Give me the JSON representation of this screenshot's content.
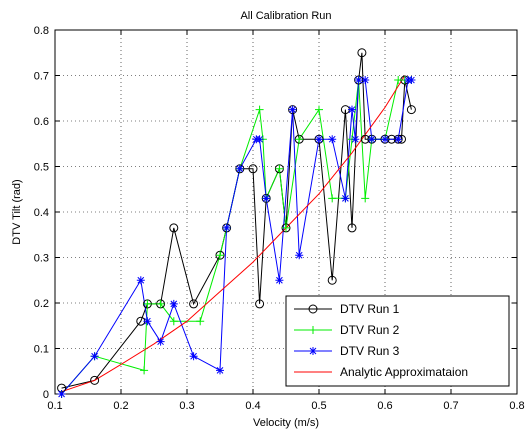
{
  "chart_data": {
    "type": "line",
    "title": "All Calibration Run",
    "xlabel": "Velocity (m/s)",
    "ylabel": "DTV Tilt (rad)",
    "xlim": [
      0.1,
      0.8
    ],
    "ylim": [
      0,
      0.8
    ],
    "xticks": [
      "0.1",
      "0.2",
      "0.3",
      "0.4",
      "0.5",
      "0.6",
      "0.7",
      "0.8"
    ],
    "yticks": [
      "0",
      "0.1",
      "0.2",
      "0.3",
      "0.4",
      "0.5",
      "0.6",
      "0.7",
      "0.8"
    ],
    "grid": "dotted",
    "legend_position": "bottom-right",
    "series": [
      {
        "name": "DTV Run 1",
        "color": "#000000",
        "marker": "circle",
        "x": [
          0.11,
          0.16,
          0.23,
          0.24,
          0.26,
          0.28,
          0.31,
          0.35,
          0.36,
          0.38,
          0.4,
          0.41,
          0.42,
          0.44,
          0.45,
          0.46,
          0.47,
          0.5,
          0.52,
          0.54,
          0.55,
          0.56,
          0.565,
          0.57,
          0.58,
          0.6,
          0.61,
          0.62,
          0.625,
          0.63,
          0.64
        ],
        "y": [
          0.013,
          0.03,
          0.16,
          0.198,
          0.198,
          0.365,
          0.198,
          0.305,
          0.365,
          0.495,
          0.495,
          0.198,
          0.43,
          0.495,
          0.365,
          0.625,
          0.56,
          0.56,
          0.25,
          0.625,
          0.365,
          0.69,
          0.75,
          0.56,
          0.56,
          0.56,
          0.56,
          0.56,
          0.56,
          0.69,
          0.625
        ]
      },
      {
        "name": "DTV Run 2",
        "color": "#00ee00",
        "marker": "plus",
        "x": [
          0.11,
          0.16,
          0.235,
          0.24,
          0.26,
          0.28,
          0.32,
          0.35,
          0.36,
          0.38,
          0.41,
          0.415,
          0.42,
          0.44,
          0.45,
          0.47,
          0.5,
          0.52,
          0.54,
          0.55,
          0.56,
          0.57,
          0.58,
          0.6,
          0.62,
          0.63,
          0.64
        ],
        "y": [
          0.0,
          0.083,
          0.052,
          0.198,
          0.198,
          0.16,
          0.16,
          0.305,
          0.365,
          0.495,
          0.625,
          0.56,
          0.43,
          0.495,
          0.365,
          0.56,
          0.625,
          0.43,
          0.43,
          0.56,
          0.69,
          0.43,
          0.56,
          0.56,
          0.69,
          0.69,
          0.69
        ]
      },
      {
        "name": "DTV Run 3",
        "color": "#0000ff",
        "marker": "star",
        "x": [
          0.11,
          0.16,
          0.23,
          0.24,
          0.26,
          0.28,
          0.31,
          0.35,
          0.36,
          0.38,
          0.405,
          0.41,
          0.42,
          0.44,
          0.46,
          0.47,
          0.5,
          0.52,
          0.54,
          0.55,
          0.555,
          0.56,
          0.57,
          0.58,
          0.6,
          0.62,
          0.635,
          0.64
        ],
        "y": [
          0.0,
          0.083,
          0.25,
          0.16,
          0.115,
          0.198,
          0.083,
          0.052,
          0.365,
          0.495,
          0.56,
          0.56,
          0.43,
          0.25,
          0.625,
          0.305,
          0.56,
          0.56,
          0.43,
          0.625,
          0.56,
          0.69,
          0.69,
          0.56,
          0.56,
          0.56,
          0.69,
          0.69
        ]
      },
      {
        "name": "Analytic Approximataion",
        "color": "#ff0000",
        "marker": "none",
        "x": [
          0.11,
          0.16,
          0.2,
          0.25,
          0.3,
          0.35,
          0.4,
          0.45,
          0.5,
          0.55,
          0.6,
          0.63
        ],
        "y": [
          0.005,
          0.03,
          0.065,
          0.11,
          0.16,
          0.225,
          0.29,
          0.365,
          0.44,
          0.53,
          0.63,
          0.7
        ]
      }
    ]
  }
}
